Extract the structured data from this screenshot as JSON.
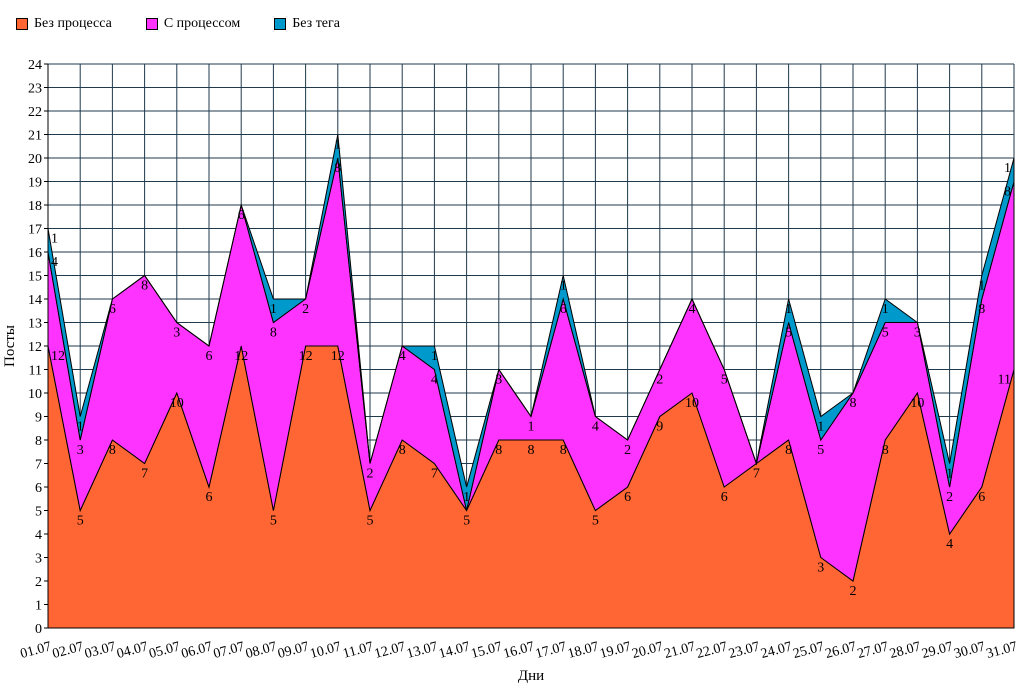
{
  "chart_data": {
    "type": "area",
    "stacked": true,
    "xlabel": "Дни",
    "ylabel": "Посты",
    "ylim": [
      0,
      24
    ],
    "grid": true,
    "legend_position": "top-left",
    "categories": [
      "01.07",
      "02.07",
      "03.07",
      "04.07",
      "05.07",
      "06.07",
      "07.07",
      "08.07",
      "09.07",
      "10.07",
      "11.07",
      "12.07",
      "13.07",
      "14.07",
      "15.07",
      "16.07",
      "17.07",
      "18.07",
      "19.07",
      "20.07",
      "21.07",
      "22.07",
      "23.07",
      "24.07",
      "25.07",
      "26.07",
      "27.07",
      "28.07",
      "29.07",
      "30.07",
      "31.07"
    ],
    "series": [
      {
        "name": "Без процесса",
        "color": "#ff6633",
        "values": [
          12,
          5,
          8,
          7,
          10,
          6,
          12,
          5,
          12,
          12,
          5,
          8,
          7,
          5,
          8,
          8,
          8,
          5,
          6,
          9,
          10,
          6,
          7,
          8,
          3,
          2,
          8,
          10,
          4,
          6,
          11
        ]
      },
      {
        "name": "С процессом",
        "color": "#ff33ff",
        "values": [
          4,
          3,
          6,
          8,
          3,
          6,
          6,
          8,
          2,
          8,
          2,
          4,
          4,
          0,
          3,
          1,
          6,
          4,
          2,
          2,
          4,
          5,
          0,
          5,
          5,
          8,
          5,
          3,
          2,
          8,
          8
        ]
      },
      {
        "name": "Без тега",
        "color": "#0099cc",
        "values": [
          1,
          1,
          0,
          0,
          0,
          0,
          0,
          1,
          0,
          1,
          0,
          0,
          1,
          1,
          0,
          0,
          1,
          0,
          0,
          0,
          0,
          0,
          0,
          1,
          1,
          0,
          1,
          0,
          1,
          1,
          1
        ]
      }
    ]
  }
}
